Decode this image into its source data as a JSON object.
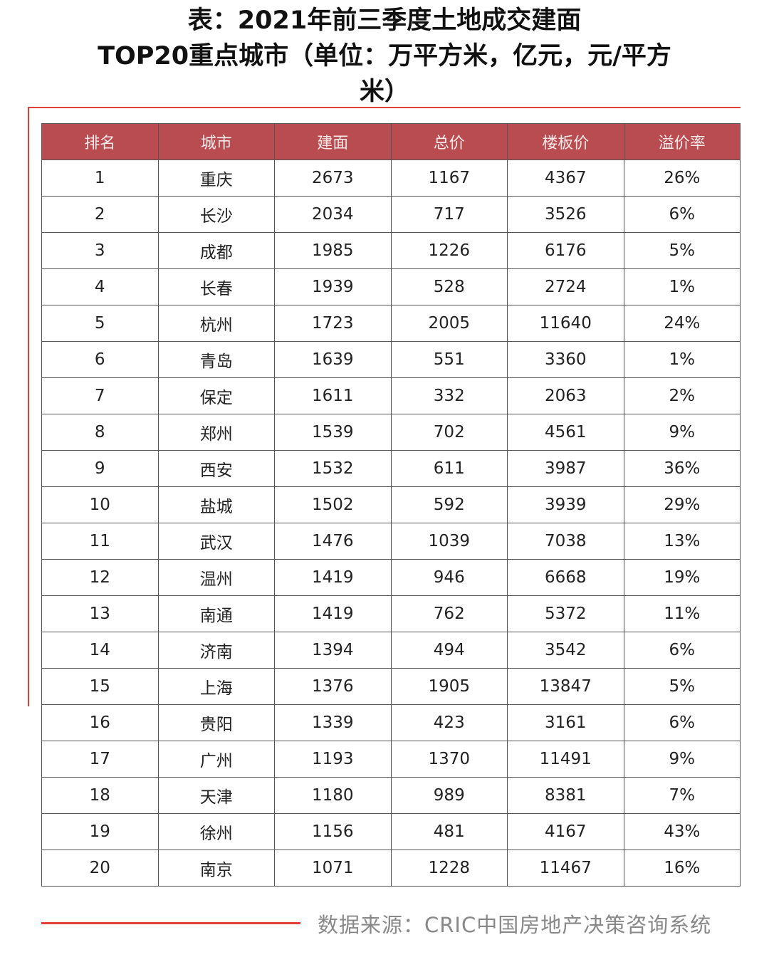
{
  "title": {
    "line1": "表：2021年前三季度土地成交建面",
    "line2": "TOP20重点城市（单位：万平方米，亿元，元/平方",
    "line3": "米）"
  },
  "colors": {
    "header_bg": "#b84c50",
    "accent_line": "#e0403a"
  },
  "table": {
    "headers": [
      "排名",
      "城市",
      "建面",
      "总价",
      "楼板价",
      "溢价率"
    ],
    "rows": [
      [
        "1",
        "重庆",
        "2673",
        "1167",
        "4367",
        "26%"
      ],
      [
        "2",
        "长沙",
        "2034",
        "717",
        "3526",
        "6%"
      ],
      [
        "3",
        "成都",
        "1985",
        "1226",
        "6176",
        "5%"
      ],
      [
        "4",
        "长春",
        "1939",
        "528",
        "2724",
        "1%"
      ],
      [
        "5",
        "杭州",
        "1723",
        "2005",
        "11640",
        "24%"
      ],
      [
        "6",
        "青岛",
        "1639",
        "551",
        "3360",
        "1%"
      ],
      [
        "7",
        "保定",
        "1611",
        "332",
        "2063",
        "2%"
      ],
      [
        "8",
        "郑州",
        "1539",
        "702",
        "4561",
        "9%"
      ],
      [
        "9",
        "西安",
        "1532",
        "611",
        "3987",
        "36%"
      ],
      [
        "10",
        "盐城",
        "1502",
        "592",
        "3939",
        "29%"
      ],
      [
        "11",
        "武汉",
        "1476",
        "1039",
        "7038",
        "13%"
      ],
      [
        "12",
        "温州",
        "1419",
        "946",
        "6668",
        "19%"
      ],
      [
        "13",
        "南通",
        "1419",
        "762",
        "5372",
        "11%"
      ],
      [
        "14",
        "济南",
        "1394",
        "494",
        "3542",
        "6%"
      ],
      [
        "15",
        "上海",
        "1376",
        "1905",
        "13847",
        "5%"
      ],
      [
        "16",
        "贵阳",
        "1339",
        "423",
        "3161",
        "6%"
      ],
      [
        "17",
        "广州",
        "1193",
        "1370",
        "11491",
        "9%"
      ],
      [
        "18",
        "天津",
        "1180",
        "989",
        "8381",
        "7%"
      ],
      [
        "19",
        "徐州",
        "1156",
        "481",
        "4167",
        "43%"
      ],
      [
        "20",
        "南京",
        "1071",
        "1228",
        "11467",
        "16%"
      ]
    ]
  },
  "footer": {
    "source": "数据来源：CRIC中国房地产决策咨询系统"
  }
}
